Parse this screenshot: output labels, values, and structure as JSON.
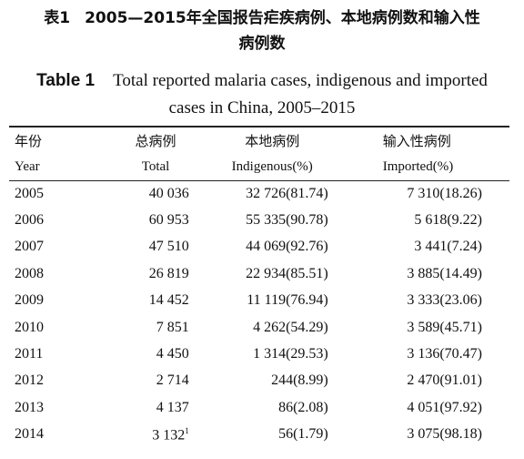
{
  "title_cn": {
    "label": "表1",
    "text_line1": "2005—2015年全国报告疟疾病例、本地病例数和输入性",
    "text_line2": "病例数"
  },
  "title_en": {
    "label": "Table 1",
    "text_line1": "Total reported malaria cases, indigenous and imported",
    "text_line2": "cases in China, 2005–2015"
  },
  "headers_cn": [
    "年份",
    "总病例",
    "本地病例",
    "输入性病例"
  ],
  "headers_en": [
    "Year",
    "Total",
    "Indigenous(%)",
    "Imported(%)"
  ],
  "rows": [
    {
      "year": "2005",
      "total": "40 036",
      "indigenous": "32 726(81.74)",
      "imported": "7 310(18.26)"
    },
    {
      "year": "2006",
      "total": "60 953",
      "indigenous": "55 335(90.78)",
      "imported": "5 618(9.22)"
    },
    {
      "year": "2007",
      "total": "47 510",
      "indigenous": "44 069(92.76)",
      "imported": "3 441(7.24)"
    },
    {
      "year": "2008",
      "total": "26 819",
      "indigenous": "22 934(85.51)",
      "imported": "3 885(14.49)"
    },
    {
      "year": "2009",
      "total": "14 452",
      "indigenous": "11 119(76.94)",
      "imported": "3 333(23.06)"
    },
    {
      "year": "2010",
      "total": "7 851",
      "indigenous": "4 262(54.29)",
      "imported": "3 589(45.71)"
    },
    {
      "year": "2011",
      "total": "4 450",
      "indigenous": "1 314(29.53)",
      "imported": "3 136(70.47)"
    },
    {
      "year": "2012",
      "total": "2 714",
      "indigenous": "244(8.99)",
      "imported": "2 470(91.01)"
    },
    {
      "year": "2013",
      "total": "4 137",
      "indigenous": "86(2.08)",
      "imported": "4 051(97.92)"
    },
    {
      "year": "2014",
      "total": "3 132",
      "total_note": "1",
      "indigenous": "56(1.79)",
      "imported": "3 075(98.18)"
    }
  ]
}
